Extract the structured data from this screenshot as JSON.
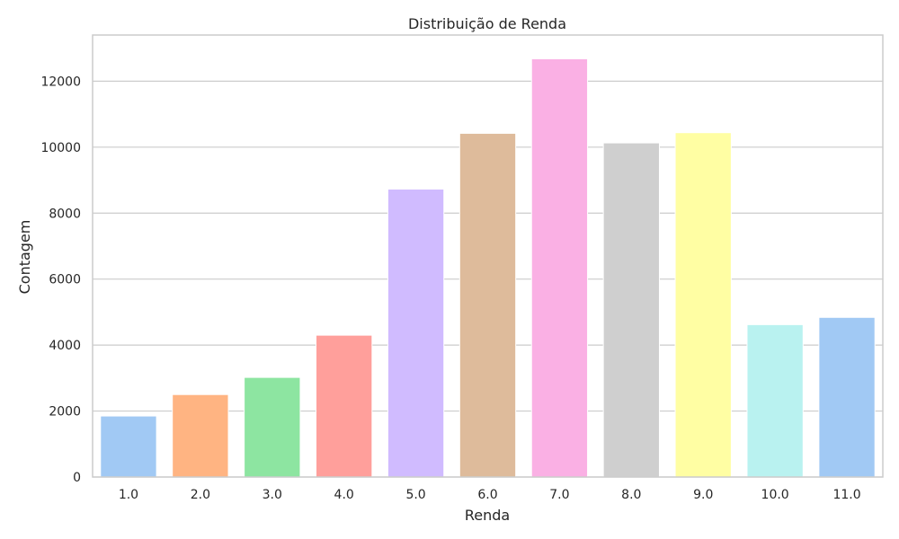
{
  "chart_data": {
    "type": "bar",
    "title": "Distribuição de Renda",
    "xlabel": "Renda",
    "ylabel": "Contagem",
    "categories": [
      "1.0",
      "2.0",
      "3.0",
      "4.0",
      "5.0",
      "6.0",
      "7.0",
      "8.0",
      "9.0",
      "10.0",
      "11.0"
    ],
    "values": [
      1850,
      2500,
      3020,
      4300,
      8730,
      10420,
      12680,
      10130,
      10440,
      4620,
      4840
    ],
    "colors": [
      "#a1c9f4",
      "#ffb482",
      "#8de5a1",
      "#ff9f9b",
      "#d0bbff",
      "#debb9b",
      "#fab0e4",
      "#cfcfcf",
      "#fffea3",
      "#b9f2f0",
      "#a1c9f4"
    ],
    "ylim": [
      0,
      13400
    ],
    "yticks": [
      0,
      2000,
      4000,
      6000,
      8000,
      10000,
      12000
    ],
    "grid": true,
    "legend": "none"
  }
}
